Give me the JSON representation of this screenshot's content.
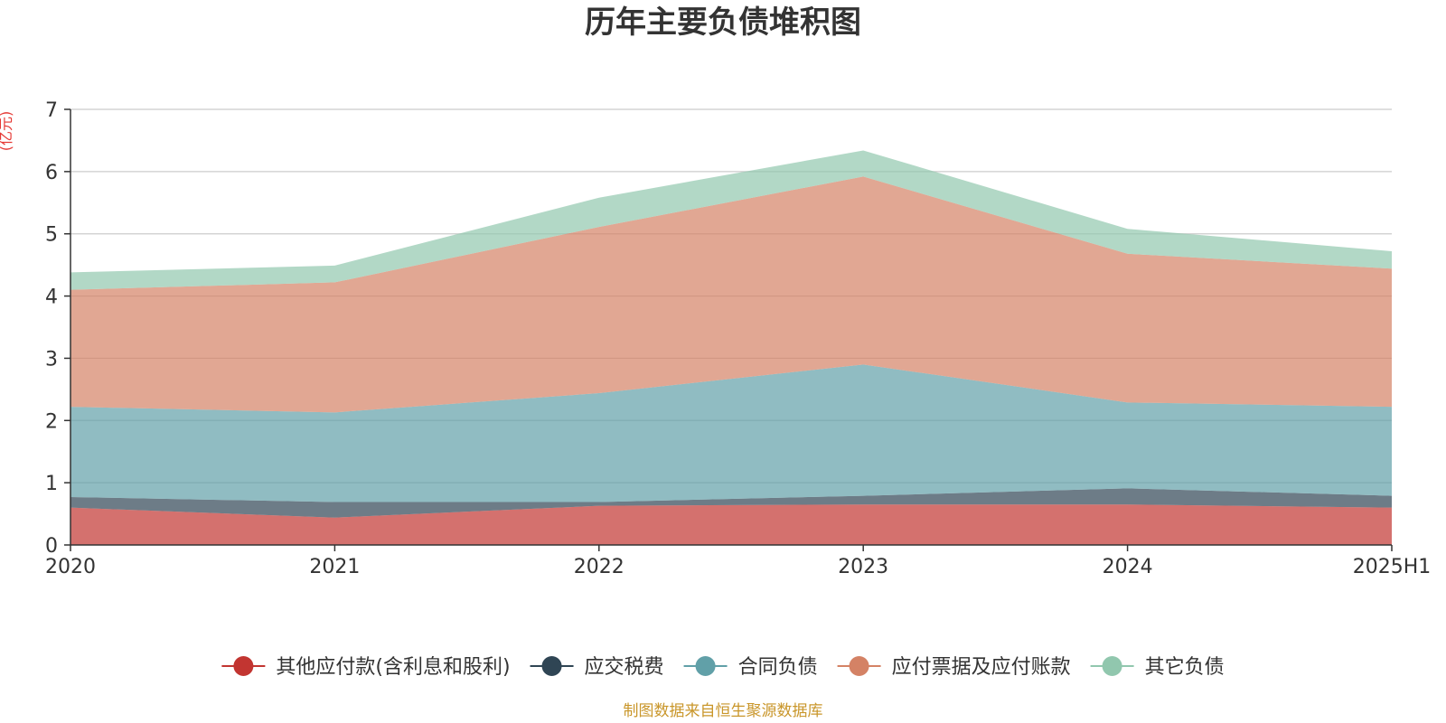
{
  "chart_data": {
    "type": "area",
    "stacked": true,
    "title": "历年主要负债堆积图",
    "unit_label": "(亿元)",
    "categories": [
      "2020",
      "2021",
      "2022",
      "2023",
      "2024",
      "2025H1"
    ],
    "ylim": [
      0,
      7
    ],
    "yticks": [
      "0",
      "1",
      "2",
      "3",
      "4",
      "5",
      "6",
      "7"
    ],
    "grid": true,
    "legend_position": "bottom",
    "series": [
      {
        "name": "其他应付款(含利息和股利)",
        "color": "#c23531",
        "values": [
          0.6,
          0.44,
          0.63,
          0.65,
          0.65,
          0.6
        ]
      },
      {
        "name": "应交税费",
        "color": "#2f4554",
        "values": [
          0.17,
          0.25,
          0.06,
          0.14,
          0.26,
          0.19
        ]
      },
      {
        "name": "合同负债",
        "color": "#61a0a8",
        "values": [
          1.45,
          1.44,
          1.75,
          2.11,
          1.38,
          1.43
        ]
      },
      {
        "name": "应付票据及应付账款",
        "color": "#d48265",
        "values": [
          1.88,
          2.09,
          2.67,
          3.02,
          2.39,
          2.22
        ]
      },
      {
        "name": "其它负债",
        "color": "#91c7ae",
        "values": [
          0.28,
          0.27,
          0.47,
          0.42,
          0.4,
          0.28
        ]
      }
    ],
    "source": "制图数据来自恒生聚源数据库"
  }
}
